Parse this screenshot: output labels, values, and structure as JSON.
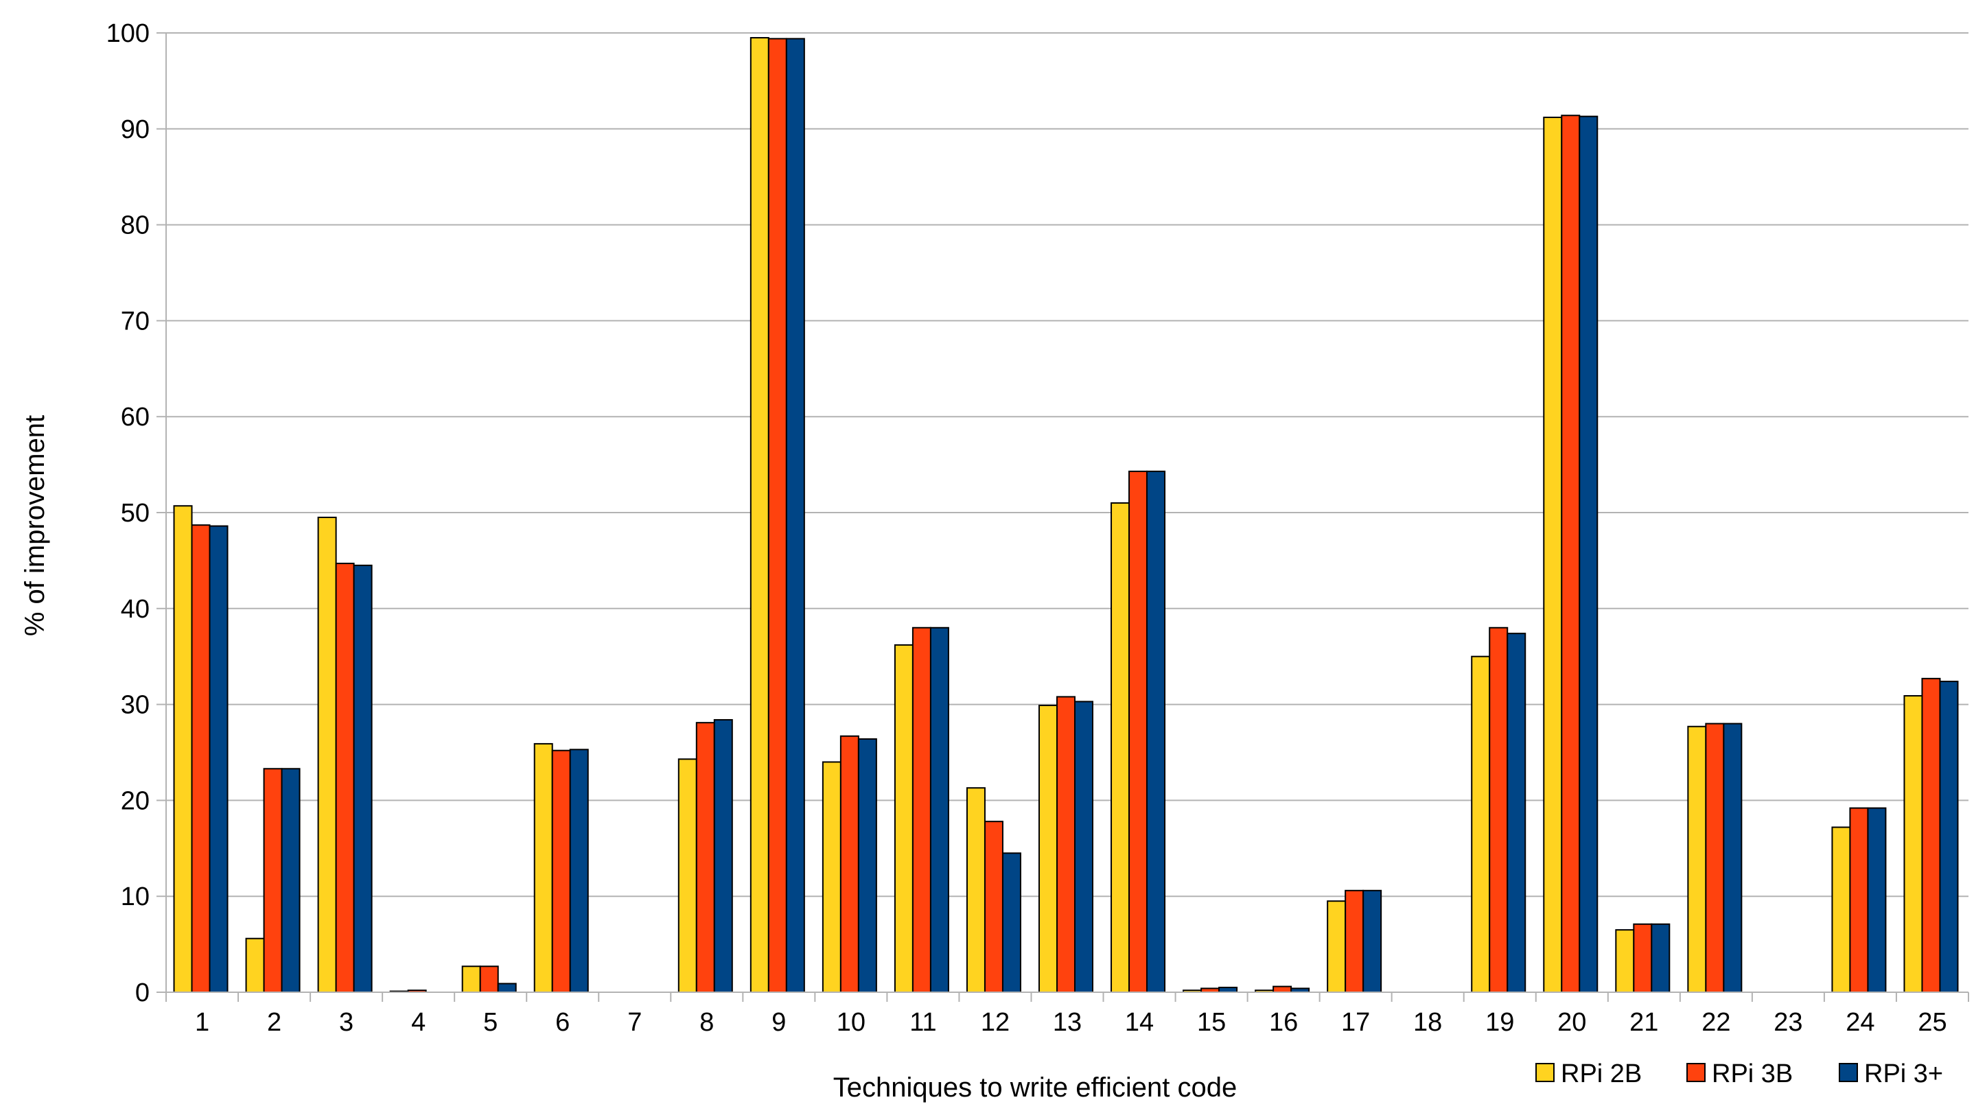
{
  "chart_data": {
    "type": "bar",
    "title": "",
    "xlabel": "Techniques to write efficient code",
    "ylabel": "% of improvement",
    "ylim": [
      0,
      100
    ],
    "yticks": [
      "0",
      "10",
      "20",
      "30",
      "40",
      "50",
      "60",
      "70",
      "80",
      "90",
      "100"
    ],
    "grid": true,
    "legend_position": "bottom-right",
    "categories": [
      "1",
      "2",
      "3",
      "4",
      "5",
      "6",
      "7",
      "8",
      "9",
      "10",
      "11",
      "12",
      "13",
      "14",
      "15",
      "16",
      "17",
      "18",
      "19",
      "20",
      "21",
      "22",
      "23",
      "24",
      "25"
    ],
    "series": [
      {
        "name": "RPi 2B",
        "color": "#FFD320",
        "values": [
          50.7,
          5.6,
          49.5,
          0.1,
          2.7,
          25.9,
          0,
          24.3,
          99.5,
          24.0,
          36.2,
          21.3,
          29.9,
          51.0,
          0.2,
          0.2,
          9.5,
          0,
          35.0,
          91.2,
          6.5,
          27.7,
          0,
          17.2,
          30.9
        ]
      },
      {
        "name": "RPi 3B",
        "color": "#FF420E",
        "values": [
          48.7,
          23.3,
          44.7,
          0.2,
          2.7,
          25.2,
          0,
          28.1,
          99.4,
          26.7,
          38.0,
          17.8,
          30.8,
          54.3,
          0.4,
          0.6,
          10.6,
          0,
          38.0,
          91.4,
          7.1,
          28.0,
          0,
          19.2,
          32.7
        ]
      },
      {
        "name": "RPi 3+",
        "color": "#004586",
        "values": [
          48.6,
          23.3,
          44.5,
          0,
          0.9,
          25.3,
          0,
          28.4,
          99.4,
          26.4,
          38.0,
          14.5,
          30.3,
          54.3,
          0.5,
          0.4,
          10.6,
          0,
          37.4,
          91.3,
          7.1,
          28.0,
          0,
          19.2,
          32.4
        ]
      }
    ]
  }
}
